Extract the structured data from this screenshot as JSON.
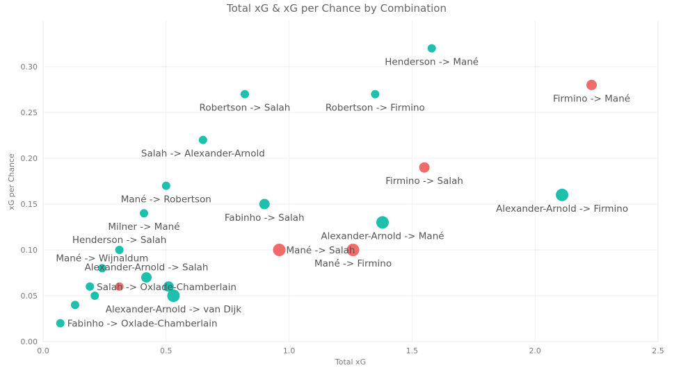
{
  "chart_data": {
    "type": "scatter",
    "title": "Total xG & xG per Chance by Combination",
    "xlabel": "Total xG",
    "ylabel": "xG per Chance",
    "xlim": [
      0,
      2.5
    ],
    "ylim": [
      0,
      0.35
    ],
    "x_ticks": [
      "0.0",
      "0.5",
      "1.0",
      "1.5",
      "2.0",
      "2.5"
    ],
    "y_ticks": [
      "0.00",
      "0.05",
      "0.10",
      "0.15",
      "0.20",
      "0.25",
      "0.30"
    ],
    "grid": true,
    "colors": {
      "teal": "#1fbfae",
      "red": "#f26b6b",
      "grid": "#eeeeee",
      "text": "#555555"
    },
    "points": [
      {
        "label": "Henderson -> Mané",
        "x": 1.58,
        "y": 0.32,
        "size": 1,
        "color": "teal",
        "label_pos": "below"
      },
      {
        "label": "Firmino -> Mané",
        "x": 2.23,
        "y": 0.28,
        "size": 2,
        "color": "red",
        "label_pos": "below"
      },
      {
        "label": "Robertson -> Salah",
        "x": 0.82,
        "y": 0.27,
        "size": 1,
        "color": "teal",
        "label_pos": "below"
      },
      {
        "label": "Robertson -> Firmino",
        "x": 1.35,
        "y": 0.27,
        "size": 1,
        "color": "teal",
        "label_pos": "below"
      },
      {
        "label": "Salah -> Alexander-Arnold",
        "x": 0.65,
        "y": 0.22,
        "size": 1,
        "color": "teal",
        "label_pos": "below"
      },
      {
        "label": "Firmino -> Salah",
        "x": 1.55,
        "y": 0.19,
        "size": 2,
        "color": "red",
        "label_pos": "below"
      },
      {
        "label": "Mané -> Robertson",
        "x": 0.5,
        "y": 0.17,
        "size": 1,
        "color": "teal",
        "label_pos": "below"
      },
      {
        "label": "Alexander-Arnold -> Firmino",
        "x": 2.11,
        "y": 0.16,
        "size": 3,
        "color": "teal",
        "label_pos": "below"
      },
      {
        "label": "Fabinho -> Salah",
        "x": 0.9,
        "y": 0.15,
        "size": 2,
        "color": "teal",
        "label_pos": "below"
      },
      {
        "label": "Milner -> Mané",
        "x": 0.41,
        "y": 0.14,
        "size": 1,
        "color": "teal",
        "label_pos": "below"
      },
      {
        "label": "Alexander-Arnold -> Mané",
        "x": 1.38,
        "y": 0.13,
        "size": 3,
        "color": "teal",
        "label_pos": "below"
      },
      {
        "label": "Henderson -> Salah",
        "x": 0.31,
        "y": 0.1,
        "size": 1,
        "color": "teal",
        "label_pos": "above"
      },
      {
        "label": "Mané -> Salah",
        "x": 0.96,
        "y": 0.1,
        "size": 3,
        "color": "red",
        "label_pos": "right"
      },
      {
        "label": "Mané -> Firmino",
        "x": 1.26,
        "y": 0.1,
        "size": 3,
        "color": "red",
        "label_pos": "below"
      },
      {
        "label": "Mané -> Wijnaldum",
        "x": 0.24,
        "y": 0.08,
        "size": 1,
        "color": "teal",
        "label_pos": "above"
      },
      {
        "label": "Alexander-Arnold -> Salah",
        "x": 0.42,
        "y": 0.07,
        "size": 2,
        "color": "teal",
        "label_pos": "above"
      },
      {
        "label": "Salah -> Oxlade-Chamberlain",
        "x": 0.19,
        "y": 0.06,
        "size": 1,
        "color": "teal",
        "label_pos": "right"
      },
      {
        "label": "",
        "x": 0.31,
        "y": 0.06,
        "size": 1,
        "color": "red",
        "label_pos": "none"
      },
      {
        "label": "",
        "x": 0.51,
        "y": 0.06,
        "size": 2,
        "color": "teal",
        "label_pos": "none"
      },
      {
        "label": "",
        "x": 0.21,
        "y": 0.05,
        "size": 1,
        "color": "teal",
        "label_pos": "none"
      },
      {
        "label": "Alexander-Arnold -> van Dijk",
        "x": 0.53,
        "y": 0.05,
        "size": 3,
        "color": "teal",
        "label_pos": "below"
      },
      {
        "label": "",
        "x": 0.13,
        "y": 0.04,
        "size": 1,
        "color": "teal",
        "label_pos": "none"
      },
      {
        "label": "Fabinho -> Oxlade-Chamberlain",
        "x": 0.07,
        "y": 0.02,
        "size": 1,
        "color": "teal",
        "label_pos": "right"
      }
    ]
  }
}
